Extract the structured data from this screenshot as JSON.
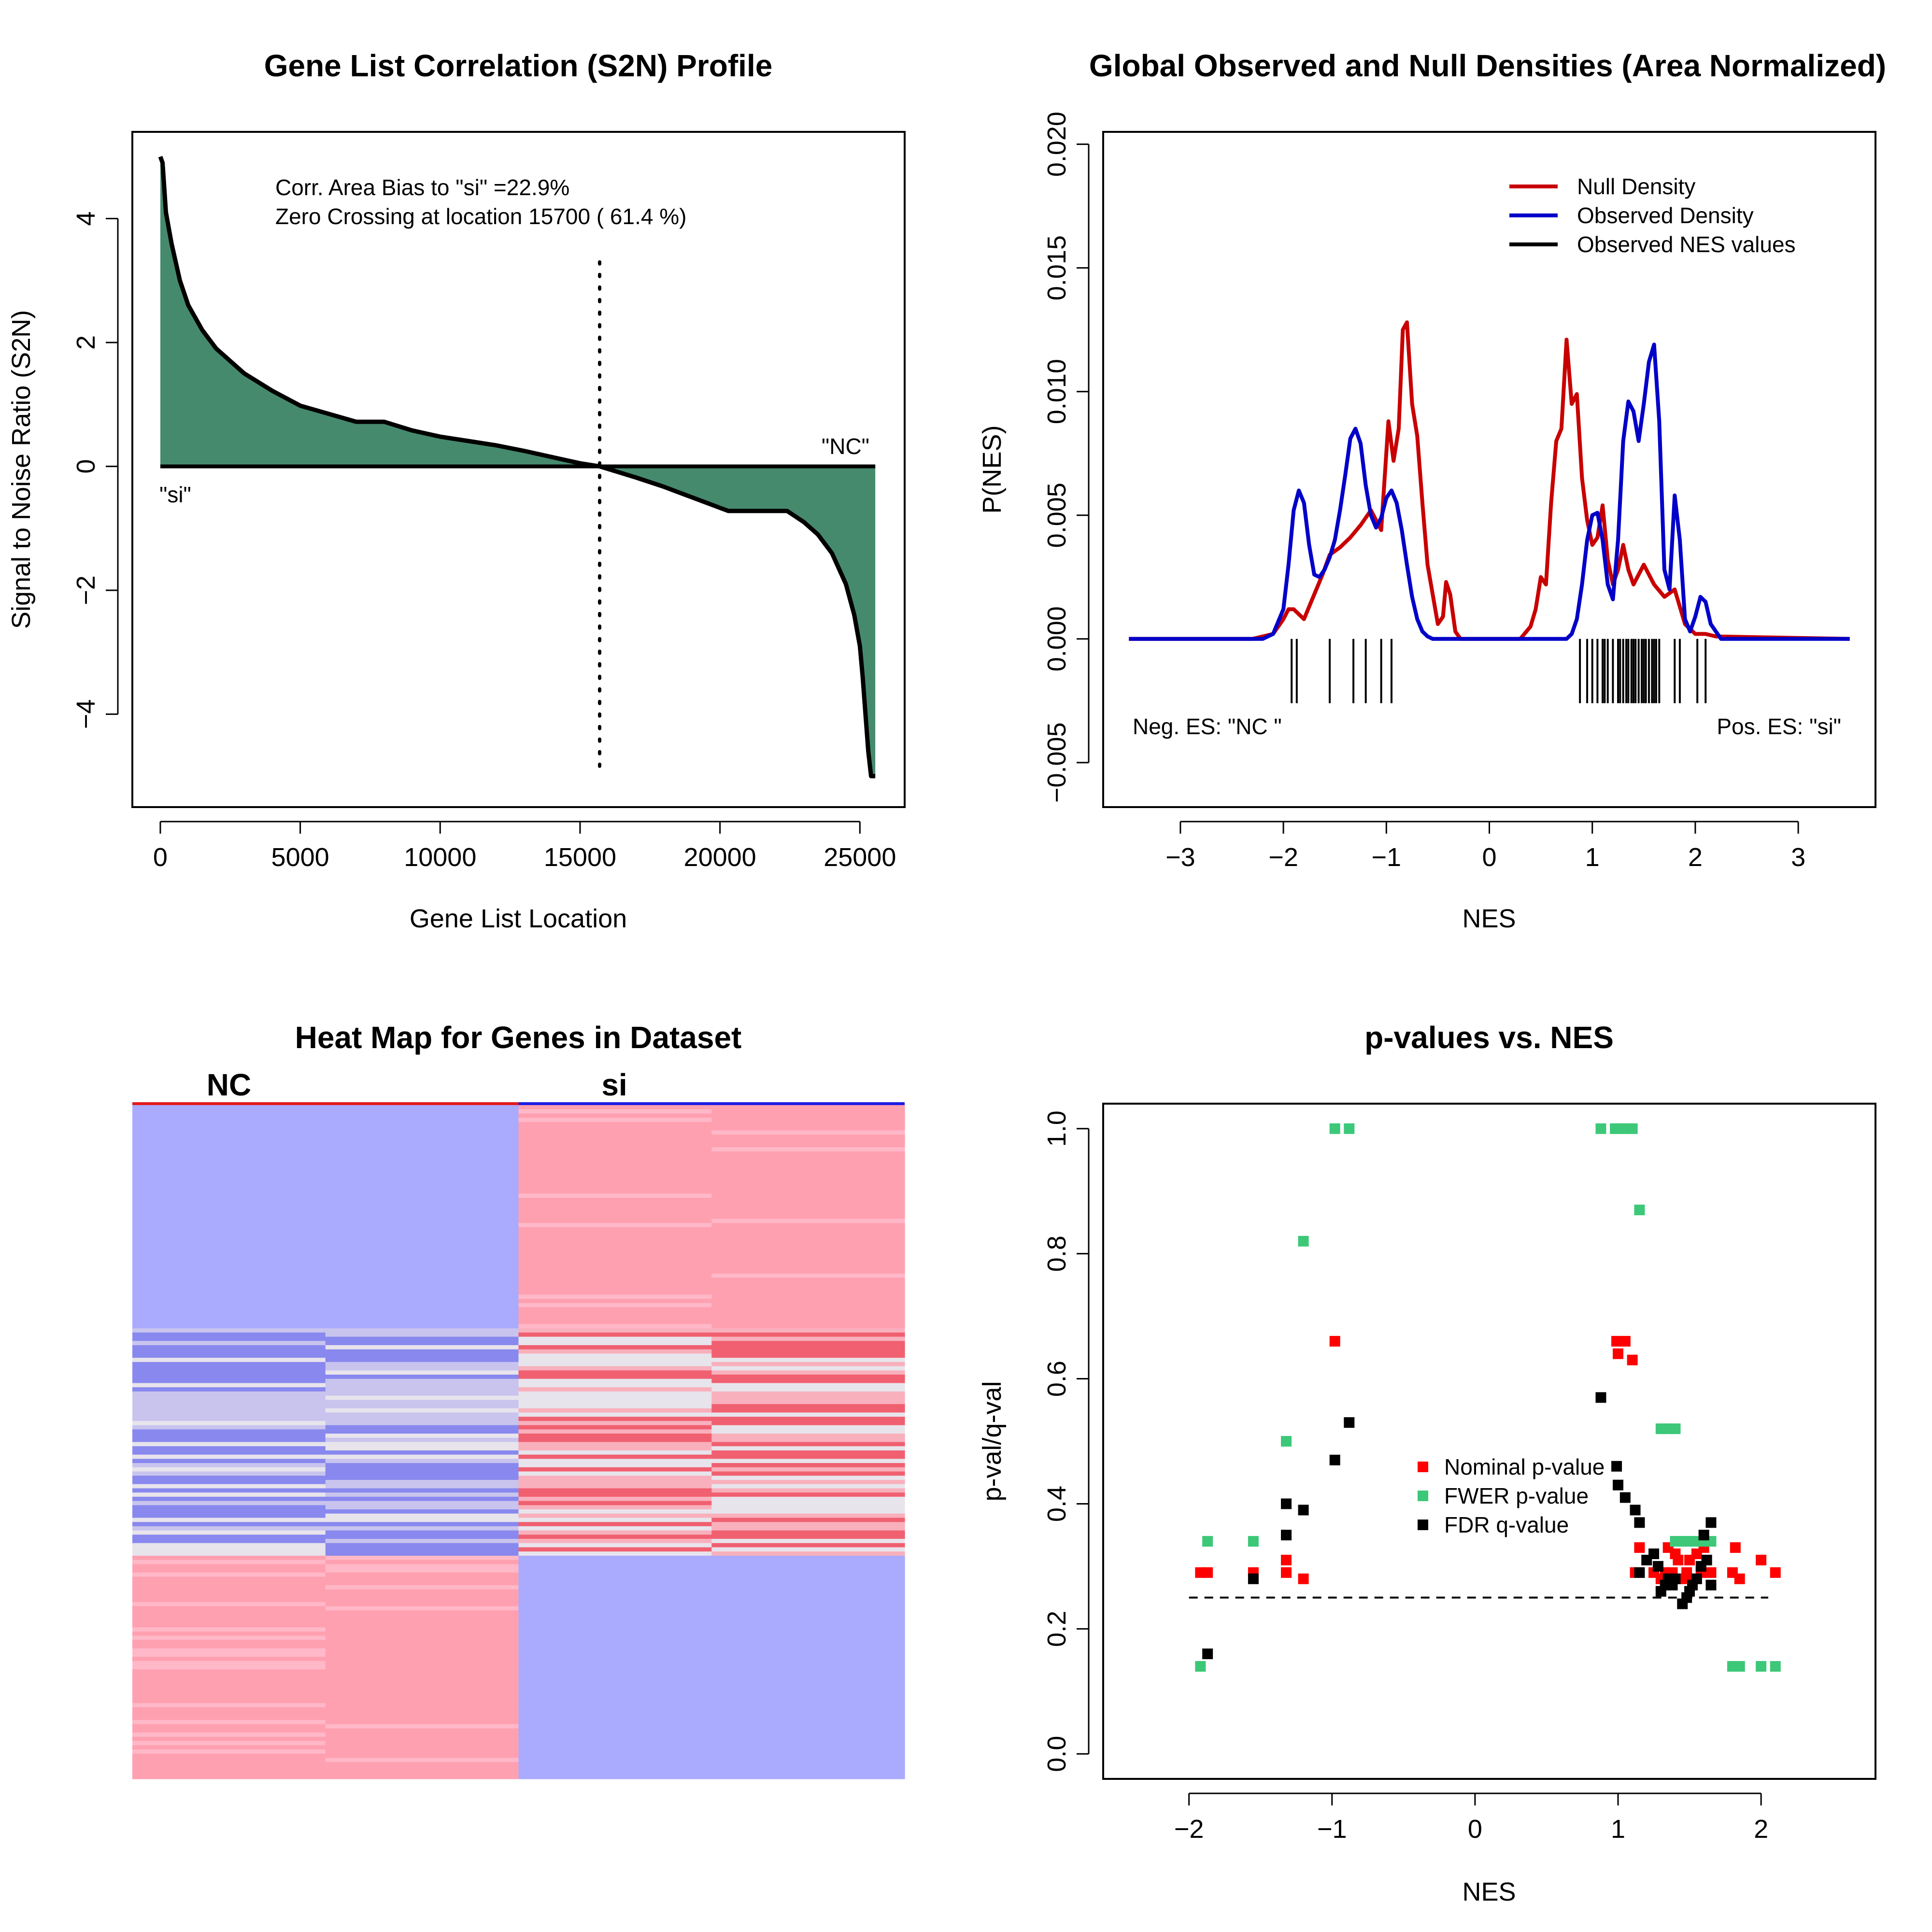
{
  "chart_data": [
    {
      "type": "area",
      "title": "Gene List Correlation (S2N) Profile",
      "xlabel": "Gene List Location",
      "ylabel": "Signal to Noise Ratio (S2N)",
      "xlim": [
        -1000,
        26600
      ],
      "ylim": [
        -5.5,
        5.4
      ],
      "xticks": [
        0,
        5000,
        10000,
        15000,
        20000,
        25000
      ],
      "yticks": [
        -4,
        -2,
        0,
        2,
        4
      ],
      "annotations": [
        "Corr. Area Bias to \"si\" =22.9%",
        "Zero Crossing at location  15700  ( 61.4  %)"
      ],
      "label_left": "\"si\"",
      "label_right": "\"NC\"",
      "zero_crossing": 15700,
      "x": [
        0,
        80,
        200,
        400,
        700,
        1000,
        1500,
        2000,
        3000,
        4000,
        5000,
        6000,
        7000,
        8000,
        9000,
        10000,
        11000,
        12000,
        13000,
        14000,
        15000,
        15700,
        17000,
        18000,
        19000,
        20300,
        21000,
        22400,
        23000,
        23500,
        24000,
        24500,
        24800,
        25000,
        25100,
        25200,
        25300,
        25400,
        25550
      ],
      "values": [
        5,
        4.9,
        4.1,
        3.6,
        3.0,
        2.6,
        2.2,
        1.9,
        1.5,
        1.22,
        0.98,
        0.85,
        0.72,
        0.72,
        0.58,
        0.48,
        0.41,
        0.34,
        0.25,
        0.15,
        0.05,
        0.0,
        -0.18,
        -0.33,
        -0.5,
        -0.72,
        -0.72,
        -0.72,
        -0.9,
        -1.1,
        -1.4,
        -1.9,
        -2.4,
        -2.9,
        -3.4,
        -4.0,
        -4.6,
        -5.0,
        -5.0
      ],
      "fill_color": "#468a6e"
    },
    {
      "type": "line",
      "title": "Global Observed and Null Densities (Area Normalized)",
      "xlabel": "NES",
      "ylabel": "P(NES)",
      "xlim": [
        -3.75,
        3.75
      ],
      "ylim": [
        -0.0068,
        0.0205
      ],
      "xticks": [
        -3,
        -2,
        -1,
        0,
        1,
        2,
        3
      ],
      "yticks": [
        -0.005,
        0.0,
        0.005,
        0.01,
        0.015,
        0.02
      ],
      "ytick_labels": [
        "−0.005",
        "0.000",
        "0.005",
        "0.010",
        "0.015",
        "0.020"
      ],
      "xtick_labels": [
        "−3",
        "−2",
        "−1",
        "0",
        "1",
        "2",
        "3"
      ],
      "legend": [
        "Null Density",
        "Observed Density",
        "Observed NES values"
      ],
      "legend_position": "top-right",
      "label_neg": "Neg. ES: \"NC \"",
      "label_pos": "Pos. ES: \"si\"",
      "series": [
        {
          "name": "Null Density",
          "color": "#c80000",
          "x": [
            -3.5,
            -2.3,
            -2.1,
            -2.0,
            -1.95,
            -1.9,
            -1.8,
            -1.72,
            -1.62,
            -1.55,
            -1.45,
            -1.35,
            -1.25,
            -1.15,
            -1.05,
            -0.98,
            -0.93,
            -0.88,
            -0.84,
            -0.8,
            -0.75,
            -0.7,
            -0.65,
            -0.6,
            -0.55,
            -0.5,
            -0.45,
            -0.42,
            -0.38,
            -0.33,
            -0.28,
            0.3,
            0.4,
            0.45,
            0.5,
            0.55,
            0.6,
            0.65,
            0.7,
            0.75,
            0.8,
            0.85,
            0.9,
            0.95,
            1.0,
            1.05,
            1.1,
            1.15,
            1.2,
            1.25,
            1.3,
            1.35,
            1.4,
            1.5,
            1.6,
            1.7,
            1.8,
            1.9,
            2.0,
            2.1,
            2.2,
            3.5
          ],
          "y": [
            0,
            0,
            0.0002,
            0.0008,
            0.0012,
            0.0012,
            0.0008,
            0.0016,
            0.0026,
            0.0034,
            0.0037,
            0.0041,
            0.0046,
            0.0052,
            0.0044,
            0.0088,
            0.0072,
            0.0085,
            0.0125,
            0.0128,
            0.0095,
            0.0082,
            0.0055,
            0.003,
            0.0018,
            0.0006,
            0.0009,
            0.0023,
            0.0018,
            0.0003,
            0.0,
            0.0,
            0.0005,
            0.0012,
            0.0025,
            0.0022,
            0.0055,
            0.008,
            0.0085,
            0.0121,
            0.0095,
            0.0099,
            0.0065,
            0.0048,
            0.0038,
            0.0041,
            0.0054,
            0.0032,
            0.0022,
            0.0028,
            0.0038,
            0.0028,
            0.0022,
            0.003,
            0.0022,
            0.0017,
            0.002,
            0.0006,
            0.0002,
            0.0002,
            0.0001,
            0
          ]
        },
        {
          "name": "Observed Density",
          "color": "#0000c8",
          "x": [
            -3.5,
            -2.2,
            -2.1,
            -2.0,
            -1.95,
            -1.9,
            -1.85,
            -1.8,
            -1.75,
            -1.7,
            -1.65,
            -1.6,
            -1.55,
            -1.5,
            -1.45,
            -1.4,
            -1.35,
            -1.3,
            -1.25,
            -1.2,
            -1.15,
            -1.1,
            -1.05,
            -1.0,
            -0.95,
            -0.9,
            -0.85,
            -0.8,
            -0.75,
            -0.7,
            -0.65,
            -0.6,
            -0.55,
            -0.5,
            -0.4,
            0.6,
            0.75,
            0.8,
            0.85,
            0.9,
            0.95,
            1.0,
            1.05,
            1.1,
            1.15,
            1.2,
            1.25,
            1.3,
            1.35,
            1.4,
            1.45,
            1.5,
            1.55,
            1.6,
            1.65,
            1.7,
            1.75,
            1.8,
            1.85,
            1.9,
            1.95,
            2.0,
            2.05,
            2.1,
            2.15,
            2.25,
            3.5
          ],
          "y": [
            0,
            0.0,
            0.0002,
            0.0012,
            0.003,
            0.0052,
            0.006,
            0.0055,
            0.0038,
            0.0026,
            0.0025,
            0.0028,
            0.0033,
            0.004,
            0.0052,
            0.0066,
            0.0081,
            0.0085,
            0.0079,
            0.0062,
            0.005,
            0.0045,
            0.0049,
            0.0057,
            0.006,
            0.0055,
            0.0044,
            0.003,
            0.0017,
            0.0008,
            0.0003,
            0.0001,
            0.0,
            0.0,
            0.0,
            0.0,
            0.0,
            0.0002,
            0.0008,
            0.0022,
            0.004,
            0.005,
            0.0051,
            0.004,
            0.0022,
            0.0016,
            0.004,
            0.008,
            0.0096,
            0.0092,
            0.008,
            0.0095,
            0.0112,
            0.0119,
            0.0088,
            0.0028,
            0.002,
            0.0058,
            0.004,
            0.0008,
            0.0003,
            0.0009,
            0.0017,
            0.0015,
            0.0006,
            0.0,
            0
          ]
        }
      ],
      "rug": [
        -1.92,
        -1.87,
        -1.55,
        -1.32,
        -1.2,
        -1.05,
        -0.95,
        0.88,
        0.95,
        1.0,
        1.05,
        1.1,
        1.12,
        1.15,
        1.2,
        1.25,
        1.27,
        1.3,
        1.33,
        1.35,
        1.38,
        1.4,
        1.42,
        1.45,
        1.48,
        1.5,
        1.52,
        1.55,
        1.58,
        1.6,
        1.62,
        1.65,
        1.8,
        1.85,
        2.02,
        2.1
      ]
    },
    {
      "type": "heatmap",
      "title": "Heat Map for Genes in Dataset",
      "groups": [
        "NC",
        "si"
      ],
      "group_colors": [
        "#e31a1c",
        "#1c1ce3"
      ],
      "columns": 4,
      "rows": 160,
      "colors": {
        "blue": "#aaaaff",
        "pink": "#ffa0b0",
        "light": "#e8e4ec",
        "deep_blue": "#8888ee",
        "deep_red": "#f06070"
      }
    },
    {
      "type": "scatter",
      "title": "p-values vs. NES",
      "xlabel": "NES",
      "ylabel": "p-val/q-val",
      "xlim": [
        -2.6,
        2.8
      ],
      "ylim": [
        -0.04,
        1.04
      ],
      "xticks": [
        -2,
        -1,
        0,
        1,
        2
      ],
      "xtick_labels": [
        "−2",
        "−1",
        "0",
        "1",
        "2"
      ],
      "yticks": [
        0.0,
        0.2,
        0.4,
        0.6,
        0.8,
        1.0
      ],
      "ytick_labels": [
        "0.0",
        "0.2",
        "0.4",
        "0.6",
        "0.8",
        "1.0"
      ],
      "threshold": 0.25,
      "legend": [
        "Nominal p-value",
        "FWER p-value",
        "FDR q-value"
      ],
      "legend_position": "center",
      "series": [
        {
          "name": "Nominal p-value",
          "color": "#ff0000",
          "points": [
            [
              -1.92,
              0.29
            ],
            [
              -1.87,
              0.29
            ],
            [
              -1.55,
              0.29
            ],
            [
              -1.32,
              0.31
            ],
            [
              -1.32,
              0.29
            ],
            [
              -1.2,
              0.28
            ],
            [
              -0.98,
              0.66
            ],
            [
              0.99,
              0.66
            ],
            [
              1.0,
              0.64
            ],
            [
              1.05,
              0.66
            ],
            [
              1.1,
              0.63
            ],
            [
              1.12,
              0.29
            ],
            [
              1.15,
              0.33
            ],
            [
              1.25,
              0.29
            ],
            [
              1.3,
              0.28
            ],
            [
              1.33,
              0.29
            ],
            [
              1.35,
              0.33
            ],
            [
              1.38,
              0.29
            ],
            [
              1.4,
              0.32
            ],
            [
              1.42,
              0.31
            ],
            [
              1.45,
              0.28
            ],
            [
              1.48,
              0.29
            ],
            [
              1.5,
              0.31
            ],
            [
              1.52,
              0.28
            ],
            [
              1.55,
              0.32
            ],
            [
              1.58,
              0.29
            ],
            [
              1.6,
              0.33
            ],
            [
              1.62,
              0.31
            ],
            [
              1.65,
              0.29
            ],
            [
              1.8,
              0.29
            ],
            [
              1.85,
              0.28
            ],
            [
              1.82,
              0.33
            ],
            [
              2.0,
              0.31
            ],
            [
              2.1,
              0.29
            ]
          ]
        },
        {
          "name": "FWER p-value",
          "color": "#3cc878",
          "points": [
            [
              -1.92,
              0.14
            ],
            [
              -1.87,
              0.34
            ],
            [
              -1.55,
              0.34
            ],
            [
              -1.32,
              0.5
            ],
            [
              -1.2,
              0.82
            ],
            [
              -0.98,
              1.0
            ],
            [
              -0.88,
              1.0
            ],
            [
              0.88,
              1.0
            ],
            [
              0.98,
              1.0
            ],
            [
              1.0,
              1.0
            ],
            [
              1.05,
              1.0
            ],
            [
              1.1,
              1.0
            ],
            [
              1.15,
              0.87
            ],
            [
              1.3,
              0.52
            ],
            [
              1.35,
              0.52
            ],
            [
              1.4,
              0.52
            ],
            [
              1.4,
              0.34
            ],
            [
              1.45,
              0.34
            ],
            [
              1.5,
              0.34
            ],
            [
              1.55,
              0.34
            ],
            [
              1.6,
              0.34
            ],
            [
              1.65,
              0.34
            ],
            [
              1.8,
              0.14
            ],
            [
              1.85,
              0.14
            ],
            [
              2.0,
              0.14
            ],
            [
              2.1,
              0.14
            ]
          ]
        },
        {
          "name": "FDR q-value",
          "color": "#000000",
          "points": [
            [
              -1.87,
              0.16
            ],
            [
              -1.55,
              0.28
            ],
            [
              -1.32,
              0.4
            ],
            [
              -1.32,
              0.35
            ],
            [
              -1.2,
              0.39
            ],
            [
              -0.98,
              0.47
            ],
            [
              -0.88,
              0.53
            ],
            [
              0.88,
              0.57
            ],
            [
              0.99,
              0.46
            ],
            [
              1.0,
              0.43
            ],
            [
              1.05,
              0.41
            ],
            [
              1.12,
              0.39
            ],
            [
              1.15,
              0.37
            ],
            [
              1.15,
              0.29
            ],
            [
              1.2,
              0.31
            ],
            [
              1.25,
              0.32
            ],
            [
              1.28,
              0.3
            ],
            [
              1.3,
              0.26
            ],
            [
              1.33,
              0.27
            ],
            [
              1.35,
              0.28
            ],
            [
              1.38,
              0.27
            ],
            [
              1.4,
              0.28
            ],
            [
              1.45,
              0.24
            ],
            [
              1.48,
              0.25
            ],
            [
              1.5,
              0.26
            ],
            [
              1.52,
              0.27
            ],
            [
              1.55,
              0.28
            ],
            [
              1.58,
              0.3
            ],
            [
              1.6,
              0.35
            ],
            [
              1.62,
              0.31
            ],
            [
              1.65,
              0.37
            ],
            [
              1.65,
              0.27
            ]
          ]
        }
      ]
    }
  ]
}
